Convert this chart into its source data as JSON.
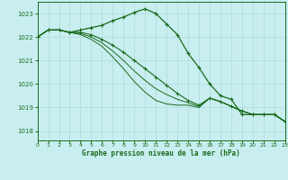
{
  "title": "Graphe pression niveau de la mer (hPa)",
  "background_color": "#c8eef0",
  "grid_color": "#b0d8dc",
  "line_color": "#1a6b1a",
  "xlim": [
    0,
    23
  ],
  "ylim": [
    1017.6,
    1023.5
  ],
  "yticks": [
    1018,
    1019,
    1020,
    1021,
    1022,
    1023
  ],
  "xticks": [
    0,
    1,
    2,
    3,
    4,
    5,
    6,
    7,
    8,
    9,
    10,
    11,
    12,
    13,
    14,
    15,
    16,
    17,
    18,
    19,
    20,
    21,
    22,
    23
  ],
  "series": [
    [
      1022.0,
      1022.3,
      1022.3,
      1022.2,
      1022.3,
      1022.4,
      1022.5,
      1022.7,
      1022.85,
      1023.05,
      1023.2,
      1023.0,
      1022.55,
      1022.1,
      1021.3,
      1020.7,
      1020.0,
      1019.5,
      1019.35,
      1018.7,
      1018.7,
      1018.7,
      1018.7,
      1018.4
    ],
    [
      1022.0,
      1022.3,
      1022.3,
      1022.2,
      1022.2,
      1022.1,
      1021.9,
      1021.65,
      1021.35,
      1021.0,
      1020.65,
      1020.3,
      1019.95,
      1019.6,
      1019.3,
      1019.1,
      1019.4,
      1019.25,
      1019.05,
      1018.85,
      1018.7,
      1018.7,
      1018.7,
      1018.4
    ],
    [
      1022.0,
      1022.3,
      1022.3,
      1022.2,
      1022.15,
      1022.0,
      1021.75,
      1021.4,
      1021.0,
      1020.55,
      1020.15,
      1019.8,
      1019.55,
      1019.35,
      1019.2,
      1019.05,
      1019.4,
      1019.25,
      1019.05,
      1018.85,
      1018.7,
      1018.7,
      1018.7,
      1018.4
    ],
    [
      1022.0,
      1022.3,
      1022.3,
      1022.2,
      1022.1,
      1021.9,
      1021.6,
      1021.15,
      1020.65,
      1020.1,
      1019.65,
      1019.3,
      1019.15,
      1019.1,
      1019.1,
      1019.0,
      1019.4,
      1019.25,
      1019.05,
      1018.85,
      1018.7,
      1018.7,
      1018.7,
      1018.4
    ]
  ]
}
